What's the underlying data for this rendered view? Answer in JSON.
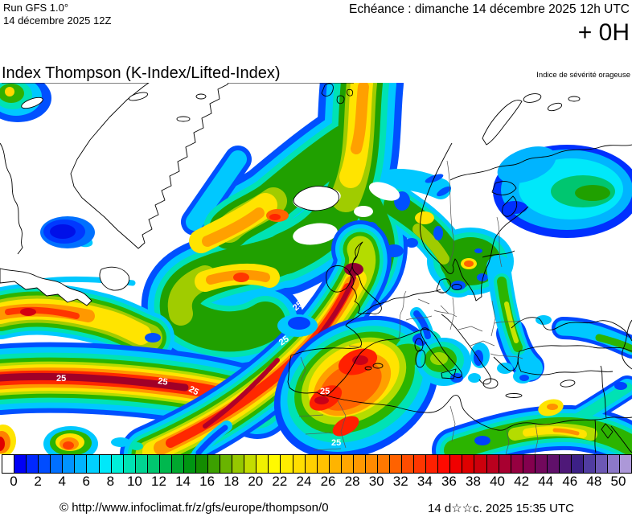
{
  "header": {
    "run_label": "Run GFS 1.0°",
    "run_date": "14 décembre 2025 12Z",
    "echeance": "Echéance : dimanche 14 décembre 2025 12h UTC",
    "forecast_hour": "+ 0H"
  },
  "map": {
    "title": "Index Thompson (K-Index/Lifted-Index)",
    "subtitle": "Indice de sévérité orageuse",
    "contour_label": "25"
  },
  "colorbar": {
    "min": 0,
    "max": 50,
    "units_per_cell": 1,
    "tick_labels": [
      "0",
      "2",
      "4",
      "6",
      "8",
      "10",
      "12",
      "14",
      "16",
      "18",
      "20",
      "22",
      "24",
      "26",
      "28",
      "30",
      "32",
      "34",
      "36",
      "38",
      "40",
      "42",
      "44",
      "46",
      "48",
      "50"
    ],
    "cell_colors": [
      "#FFFFFF",
      "#0000F5",
      "#0028FF",
      "#004CFF",
      "#0070FF",
      "#0094FF",
      "#00B4FF",
      "#00D0FF",
      "#00E8FA",
      "#00EED8",
      "#00E2B4",
      "#00D492",
      "#00C670",
      "#00B84E",
      "#00A82E",
      "#009612",
      "#138C00",
      "#3CA000",
      "#69B400",
      "#96C800",
      "#C3DC00",
      "#F0F000",
      "#FFFA00",
      "#FFEC00",
      "#FFDE00",
      "#FFD000",
      "#FFC200",
      "#FFB400",
      "#FFA600",
      "#FF9800",
      "#FF8A00",
      "#FF7800",
      "#FF6200",
      "#FF4C00",
      "#FF3600",
      "#FF2000",
      "#FF0A00",
      "#F00000",
      "#DE0000",
      "#CC000C",
      "#BA001E",
      "#A80030",
      "#960040",
      "#84004E",
      "#72085C",
      "#60106A",
      "#4E1878",
      "#3C2086",
      "#503CA0",
      "#6C58B4",
      "#8C78C8",
      "#AC98D8"
    ]
  },
  "footer": {
    "attribution": "© http://www.infoclimat.fr/z/gfs/europe/thompson/0",
    "generated": "14 d☆☆c. 2025 15:35 UTC"
  }
}
